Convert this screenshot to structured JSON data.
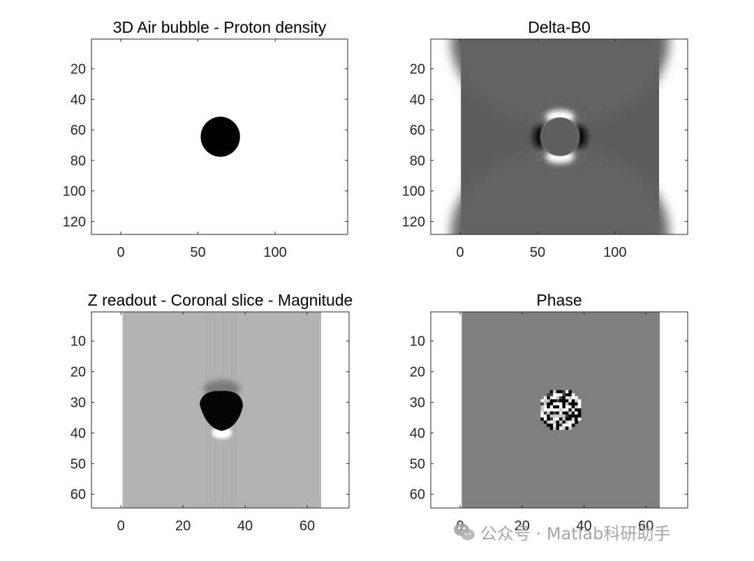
{
  "figure": {
    "panels": [
      {
        "title": "3D Air bubble - Proton density",
        "xticks": [
          0,
          50,
          100
        ],
        "yticks": [
          20,
          40,
          60,
          80,
          100,
          120
        ],
        "image": "binary disk"
      },
      {
        "title": "Delta-B0",
        "xticks": [
          0,
          50,
          100
        ],
        "yticks": [
          20,
          40,
          60,
          80,
          100,
          120
        ],
        "image": "dipole field map"
      },
      {
        "title": "Z readout - Coronal slice - Magnitude",
        "xticks": [
          0,
          20,
          40,
          60
        ],
        "yticks": [
          10,
          20,
          30,
          40,
          50,
          60
        ],
        "image": "magnitude with artifacts"
      },
      {
        "title": "Phase",
        "xticks": [
          0,
          20,
          40,
          60
        ],
        "yticks": [
          10,
          20,
          30,
          40,
          50,
          60
        ],
        "image": "phase noise in bubble"
      }
    ]
  },
  "watermark": {
    "text": "公众号 · Matlab科研助手"
  },
  "chart_data": [
    {
      "type": "heatmap",
      "title": "3D Air bubble - Proton density",
      "xlim": [
        -19,
        147
      ],
      "ylim": [
        0.5,
        128.5
      ],
      "y_direction": "reverse",
      "xticks": [
        0,
        50,
        100
      ],
      "yticks": [
        20,
        40,
        60,
        80,
        100,
        120
      ],
      "image_extent_x": [
        -19,
        147
      ],
      "colormap": "gray",
      "description_values": {
        "background": 1,
        "bubble": 0
      },
      "bubble": {
        "center": [
          64.5,
          64.5
        ],
        "radius": 12.5
      }
    },
    {
      "type": "heatmap",
      "title": "Delta-B0",
      "xlim": [
        -19,
        147
      ],
      "ylim": [
        0.5,
        128.5
      ],
      "y_direction": "reverse",
      "xticks": [
        0,
        50,
        100
      ],
      "yticks": [
        20,
        40,
        60,
        80,
        100,
        120
      ],
      "image_extent_x": [
        0.5,
        128.5
      ],
      "colormap": "gray",
      "bubble": {
        "center": [
          64.5,
          64.5
        ],
        "radius": 12.5
      }
    },
    {
      "type": "heatmap",
      "title": "Z readout - Coronal slice - Magnitude",
      "xlim": [
        -9.5,
        73.5
      ],
      "ylim": [
        0.5,
        64.5
      ],
      "y_direction": "reverse",
      "xticks": [
        0,
        20,
        40,
        60
      ],
      "yticks": [
        10,
        20,
        30,
        40,
        50,
        60
      ],
      "image_extent_x": [
        0.5,
        64.5
      ],
      "colormap": "gray",
      "bubble": {
        "center": [
          32.5,
          32.5
        ],
        "radius": 6.5
      }
    },
    {
      "type": "heatmap",
      "title": "Phase",
      "xlim": [
        -9.5,
        73.5
      ],
      "ylim": [
        0.5,
        64.5
      ],
      "y_direction": "reverse",
      "xticks": [
        0,
        20,
        40,
        60
      ],
      "yticks": [
        10,
        20,
        30,
        40,
        50,
        60
      ],
      "image_extent_x": [
        0.5,
        64.5
      ],
      "colormap": "gray",
      "bubble": {
        "center": [
          32.5,
          32.5
        ],
        "radius": 6.5
      }
    }
  ]
}
